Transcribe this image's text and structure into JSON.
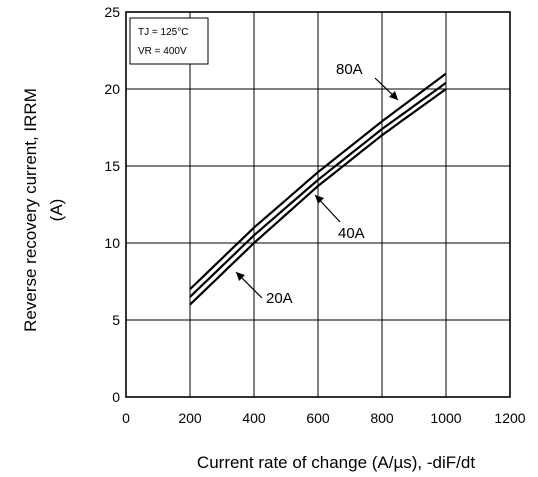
{
  "chart_data": {
    "type": "line",
    "xlabel": "Current rate of change (A/µs), -diF/dt",
    "ylabel_line1": "Reverse recovery current, IRRM",
    "ylabel_line2": "(A)",
    "xlim": [
      0,
      1200
    ],
    "ylim": [
      0,
      25
    ],
    "xticks": [
      0,
      200,
      400,
      600,
      800,
      1000,
      1200
    ],
    "yticks": [
      0,
      5,
      10,
      15,
      20,
      25
    ],
    "grid": true,
    "conditions": [
      "TJ = 125°C",
      "VR = 400V"
    ],
    "series": [
      {
        "name": "80A",
        "x": [
          200,
          400,
          600,
          800,
          1000
        ],
        "y": [
          7.0,
          11.0,
          14.6,
          17.9,
          21.0
        ]
      },
      {
        "name": "40A",
        "x": [
          200,
          400,
          600,
          800,
          1000
        ],
        "y": [
          6.5,
          10.5,
          14.1,
          17.4,
          20.4
        ]
      },
      {
        "name": "20A",
        "x": [
          200,
          400,
          600,
          800,
          1000
        ],
        "y": [
          6.0,
          10.0,
          13.7,
          17.0,
          20.0
        ]
      }
    ],
    "annotations": [
      {
        "text": "80A",
        "series": "80A"
      },
      {
        "text": "40A",
        "series": "40A"
      },
      {
        "text": "20A",
        "series": "20A"
      }
    ]
  }
}
